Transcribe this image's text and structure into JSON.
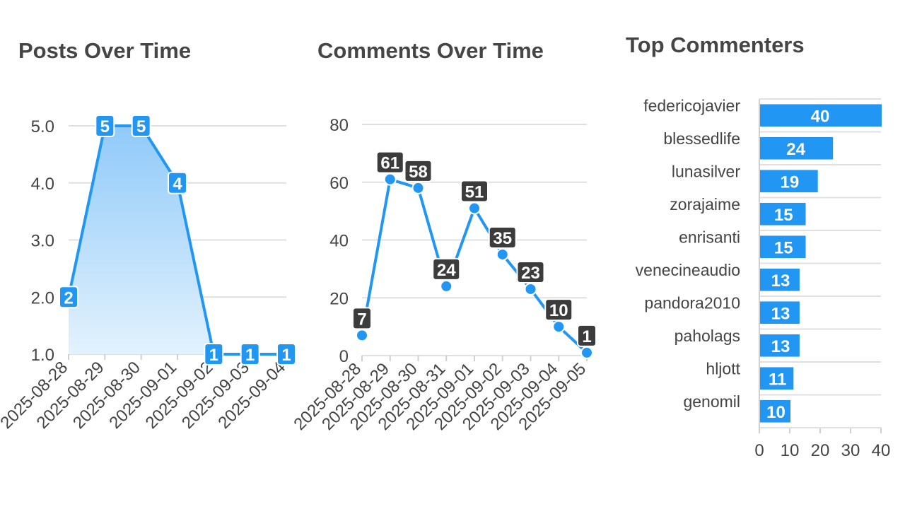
{
  "colors": {
    "series": "#2196f3",
    "area_top": "#90caf9",
    "area_bottom": "#e3f2fd",
    "grid": "#e0e0e0",
    "axis_text": "#444444",
    "dark_label": "#3c3c3c"
  },
  "chart_data": [
    {
      "type": "area",
      "title": "Posts Over Time",
      "x": [
        "2025-08-28",
        "2025-08-29",
        "2025-08-30",
        "2025-09-01",
        "2025-09-02",
        "2025-09-03",
        "2025-09-04"
      ],
      "values": [
        2,
        5,
        5,
        4,
        1,
        1,
        1
      ],
      "yticks": [
        "1.0",
        "2.0",
        "3.0",
        "4.0",
        "5.0"
      ],
      "ylim": [
        1,
        5
      ],
      "grid": true,
      "data_labels": true
    },
    {
      "type": "line",
      "title": "Comments Over Time",
      "x": [
        "2025-08-28",
        "2025-08-29",
        "2025-08-30",
        "2025-08-31",
        "2025-09-01",
        "2025-09-02",
        "2025-09-03",
        "2025-09-04",
        "2025-09-05"
      ],
      "values": [
        7,
        61,
        58,
        24,
        51,
        35,
        23,
        10,
        1
      ],
      "yticks": [
        "0",
        "20",
        "40",
        "60",
        "80"
      ],
      "ylim": [
        0,
        80
      ],
      "grid": true,
      "data_labels": true
    },
    {
      "type": "bar",
      "orientation": "horizontal",
      "title": "Top Commenters",
      "categories": [
        "federicojavier",
        "blessedlife",
        "lunasilver",
        "zorajaime",
        "enrisanti",
        "venecineaudio",
        "pandora2010",
        "paholags",
        "hljott",
        "genomil"
      ],
      "values": [
        40,
        24,
        19,
        15,
        15,
        13,
        13,
        13,
        11,
        10
      ],
      "xticks": [
        "0",
        "10",
        "20",
        "30",
        "40"
      ],
      "xlim": [
        0,
        40
      ],
      "grid": true,
      "data_labels": true
    }
  ]
}
